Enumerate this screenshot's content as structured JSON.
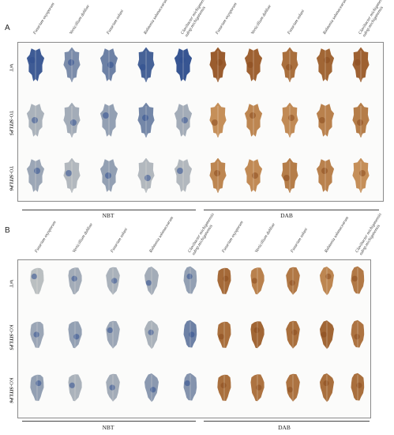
{
  "panels": [
    {
      "letter": "A",
      "columns": [
        "Fusarium oxysporum",
        "Verticillium dahliae",
        "Fusarium solani",
        "Ralstonia solanacearum",
        "Clavibacter michiganensis subsp.michiganensis",
        "Fusarium oxysporum",
        "Verticillium dahliae",
        "Fusarium solani",
        "Ralstonia solanacearum",
        "Clavibacter michiganensis subsp.michiganensis"
      ],
      "rows": [
        {
          "prefix": "WT",
          "gene": ""
        },
        {
          "prefix": "TO-",
          "gene": "SlTLP5"
        },
        {
          "prefix": "TO-",
          "gene": "SlTLP6"
        }
      ],
      "stains": [
        "NBT",
        "DAB"
      ]
    },
    {
      "letter": "B",
      "columns": [
        "Fusarium oxysporum",
        "Verticillium dahliae",
        "Fusarium solani",
        "Ralstonia solanacearum",
        "Clavibacter michiganensis subsp.michiganensis",
        "Fusarium oxysporum",
        "Verticillium dahliae",
        "Fusarium solani",
        "Ralstonia solanacearum",
        "Clavibacter michiganensis subsp.michiganensis"
      ],
      "rows": [
        {
          "prefix": "WT",
          "gene": ""
        },
        {
          "prefix": "KO-",
          "gene": "SlTLP5"
        },
        {
          "prefix": "KO-",
          "gene": "SlTLP6"
        }
      ],
      "stains": [
        "NBT",
        "DAB"
      ]
    }
  ],
  "colors": {
    "nbt_high": "#2f4f8f",
    "nbt_low": "#c9cbc6",
    "dab_high": "#8a4a1e",
    "dab_low": "#d8a66c",
    "frame": "#8a8a8a"
  }
}
